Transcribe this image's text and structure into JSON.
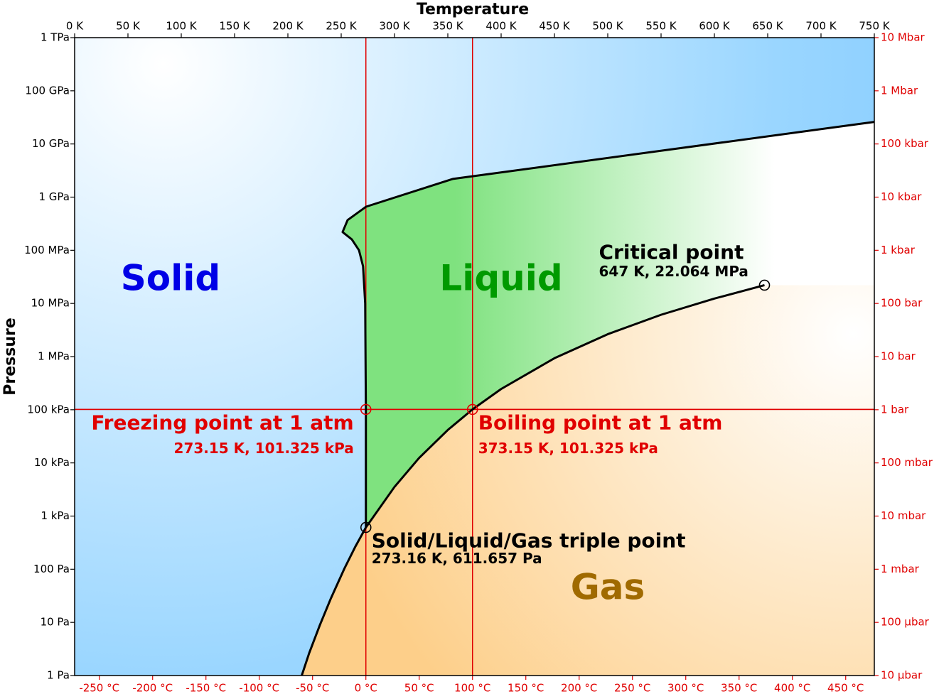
{
  "chart_data": {
    "type": "phase-diagram",
    "xlabel": "Temperature",
    "ylabel": "Pressure",
    "xlim": [
      0,
      750
    ],
    "xticks": [
      {
        "value": 0,
        "label": "0 K"
      },
      {
        "value": 50,
        "label": "50 K"
      },
      {
        "value": 100,
        "label": "100 K"
      },
      {
        "value": 150,
        "label": "150 K"
      },
      {
        "value": 200,
        "label": "200 K"
      },
      {
        "value": 250,
        "label": "250 K"
      },
      {
        "value": 300,
        "label": "300 K"
      },
      {
        "value": 350,
        "label": "350 K"
      },
      {
        "value": 400,
        "label": "400 K"
      },
      {
        "value": 450,
        "label": "450 K"
      },
      {
        "value": 500,
        "label": "500 K"
      },
      {
        "value": 550,
        "label": "550 K"
      },
      {
        "value": 600,
        "label": "600 K"
      },
      {
        "value": 650,
        "label": "650 K"
      },
      {
        "value": 700,
        "label": "700 K"
      },
      {
        "value": 750,
        "label": "750 K"
      }
    ],
    "x2lim": [
      -273.15,
      476.85
    ],
    "x2ticks": [
      {
        "value": -250,
        "label": "-250 °C"
      },
      {
        "value": -200,
        "label": "-200 °C"
      },
      {
        "value": -150,
        "label": "-150 °C"
      },
      {
        "value": -100,
        "label": "-100 °C"
      },
      {
        "value": -50,
        "label": "-50 °C"
      },
      {
        "value": 0,
        "label": "0 °C"
      },
      {
        "value": 50,
        "label": "50 °C"
      },
      {
        "value": 100,
        "label": "100 °C"
      },
      {
        "value": 150,
        "label": "150 °C"
      },
      {
        "value": 200,
        "label": "200 °C"
      },
      {
        "value": 250,
        "label": "250 °C"
      },
      {
        "value": 300,
        "label": "300 °C"
      },
      {
        "value": 350,
        "label": "350 °C"
      },
      {
        "value": 400,
        "label": "400 °C"
      },
      {
        "value": 450,
        "label": "450 °C"
      }
    ],
    "x2color": "#e00000",
    "yscale": "log",
    "ylim": [
      1,
      1000000000000
    ],
    "yticks": [
      {
        "value": 1,
        "label": "1 Pa"
      },
      {
        "value": 10,
        "label": "10 Pa"
      },
      {
        "value": 100,
        "label": "100 Pa"
      },
      {
        "value": 1000,
        "label": "1 kPa"
      },
      {
        "value": 10000,
        "label": "10 kPa"
      },
      {
        "value": 100000,
        "label": "100 kPa"
      },
      {
        "value": 1000000,
        "label": "1 MPa"
      },
      {
        "value": 10000000,
        "label": "10 MPa"
      },
      {
        "value": 100000000,
        "label": "100 MPa"
      },
      {
        "value": 1000000000,
        "label": "1 GPa"
      },
      {
        "value": 10000000000,
        "label": "10 GPa"
      },
      {
        "value": 100000000000,
        "label": "100 GPa"
      },
      {
        "value": 1000000000000,
        "label": "1 TPa"
      }
    ],
    "y2lim": [
      1e-05,
      10000000
    ],
    "y2ticks": [
      {
        "value": 1e-05,
        "label": "10 µbar"
      },
      {
        "value": 0.0001,
        "label": "100 µbar"
      },
      {
        "value": 0.001,
        "label": "1 mbar"
      },
      {
        "value": 0.01,
        "label": "10 mbar"
      },
      {
        "value": 0.1,
        "label": "100 mbar"
      },
      {
        "value": 1,
        "label": "1 bar"
      },
      {
        "value": 10,
        "label": "10 bar"
      },
      {
        "value": 100,
        "label": "100 bar"
      },
      {
        "value": 1000,
        "label": "1 kbar"
      },
      {
        "value": 10000,
        "label": "10 kbar"
      },
      {
        "value": 100000,
        "label": "100 kbar"
      },
      {
        "value": 1000000,
        "label": "1 Mbar"
      },
      {
        "value": 10000000,
        "label": "10 Mbar"
      }
    ],
    "y2color": "#e00000",
    "series": [
      {
        "color": "#000000",
        "x": [
          213,
          220,
          230,
          240,
          253,
          263,
          273.16
        ],
        "values": [
          1,
          2.65,
          8.9,
          27.3,
          103,
          260,
          611.657
        ]
      },
      {
        "color": "#000000",
        "x": [
          273.16,
          300,
          323,
          350,
          373.15,
          400,
          450,
          500,
          550,
          600,
          647
        ],
        "values": [
          611.657,
          3537,
          12350,
          41680,
          101325,
          245600,
          932000,
          2640000,
          6120000,
          12340000,
          22064000
        ]
      },
      {
        "color": "#000000",
        "x": [
          273.16,
          273.15,
          272.5,
          270.5,
          266.7,
          260,
          251.3,
          256,
          273.3,
          354.7,
          750
        ],
        "values": [
          611.657,
          100000,
          10000000,
          50000000,
          100000000,
          160000000,
          220000000,
          370000000,
          660000000,
          2200000000,
          26000000000
        ]
      }
    ],
    "regions": [
      {
        "label": "Solid",
        "color": "#0000e6"
      },
      {
        "label": "Liquid",
        "color": "#009a00"
      },
      {
        "label": "Gas",
        "color": "#a06a00"
      }
    ],
    "points": [
      {
        "name": "Freezing point at 1 atm",
        "detail": "273.15 K, 101.325 kPa",
        "x": 273.15,
        "y": 101325,
        "color": "#e00000"
      },
      {
        "name": "Boiling point at 1 atm",
        "detail": "373.15 K, 101.325 kPa",
        "x": 373.15,
        "y": 101325,
        "color": "#e00000"
      },
      {
        "name": "Solid/Liquid/Gas triple point",
        "detail": "273.16 K, 611.657 Pa",
        "x": 273.16,
        "y": 611.657,
        "color": "#000000"
      },
      {
        "name": "Critical point",
        "detail": "647 K, 22.064 MPa",
        "x": 647,
        "y": 22064000,
        "color": "#000000"
      }
    ]
  }
}
